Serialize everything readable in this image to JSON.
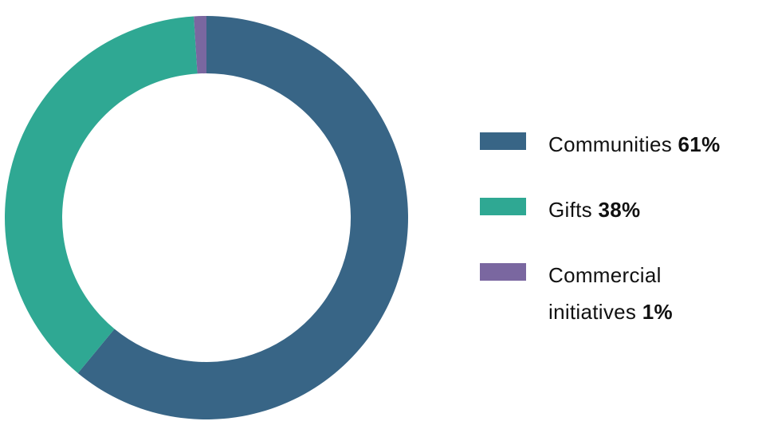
{
  "chart_data": {
    "type": "donut",
    "categories": [
      "Communities",
      "Gifts",
      "Commercial initiatives"
    ],
    "values": [
      61,
      38,
      1
    ],
    "value_labels": [
      "61%",
      "38%",
      "1%"
    ],
    "colors": [
      "#386586",
      "#2fa893",
      "#7a67a0"
    ],
    "legend": "right"
  }
}
